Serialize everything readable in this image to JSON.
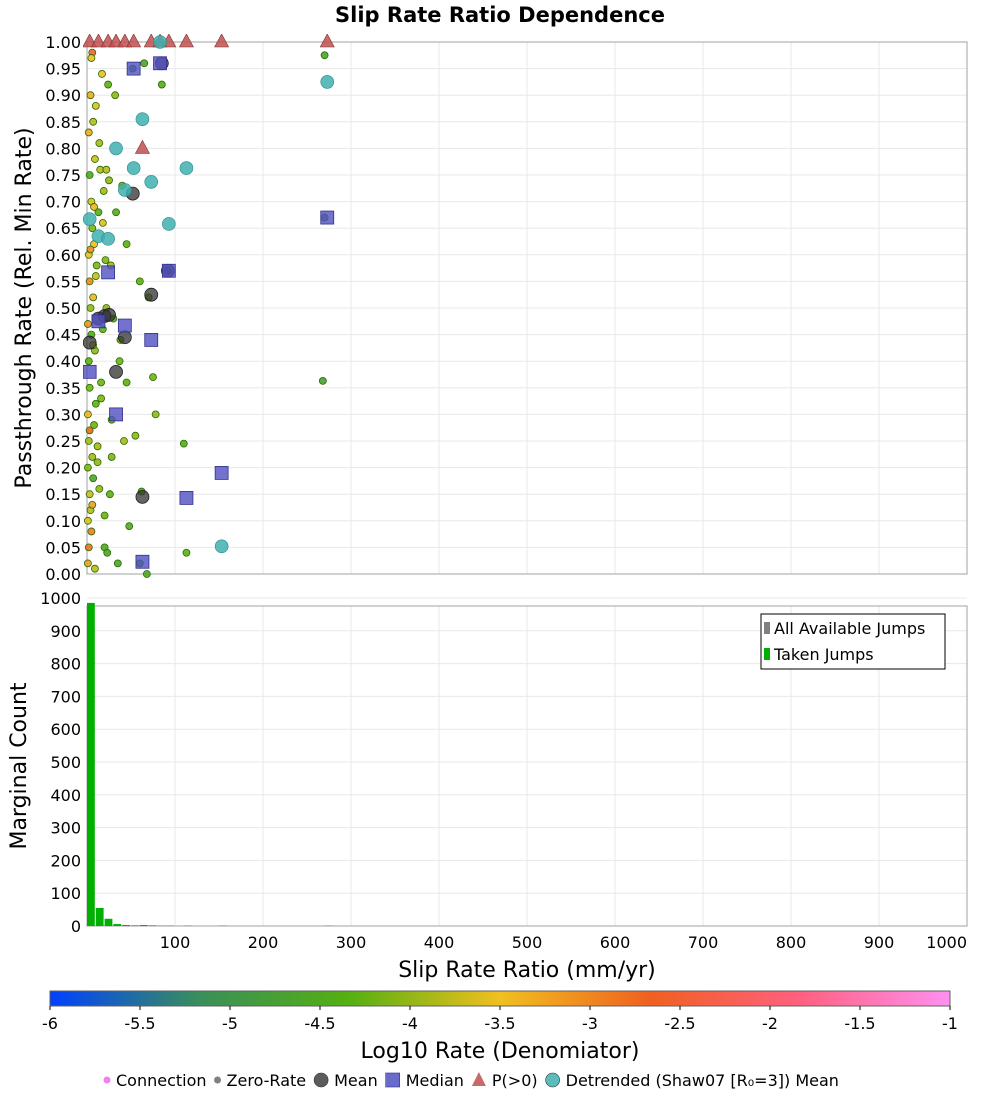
{
  "chart_data": [
    {
      "type": "scatter",
      "title": "Slip Rate Ratio Dependence",
      "ylabel": "Passthrough Rate (Rel. Min Rate)",
      "xlim": [
        0,
        1000
      ],
      "ylim": [
        0,
        1
      ],
      "y_ticks": [
        "0.00",
        "0.05",
        "0.10",
        "0.15",
        "0.20",
        "0.25",
        "0.30",
        "0.35",
        "0.40",
        "0.45",
        "0.50",
        "0.55",
        "0.60",
        "0.65",
        "0.70",
        "0.75",
        "0.80",
        "0.85",
        "0.90",
        "0.95",
        "1.00"
      ],
      "grid": true,
      "series": [
        {
          "name": "Connection",
          "color": "#f080f0",
          "values": []
        },
        {
          "name": "Zero-Rate",
          "color": "#808080",
          "values": []
        },
        {
          "name": "Mean",
          "color": "#303030",
          "x": [
            3,
            13,
            20,
            25,
            33,
            43,
            52,
            63,
            73,
            85,
            92
          ],
          "y": [
            0.435,
            0.48,
            0.485,
            0.487,
            0.38,
            0.445,
            0.715,
            0.145,
            0.525,
            0.96,
            0.57
          ]
        },
        {
          "name": "Median",
          "color": "#5050c0",
          "x": [
            3,
            13,
            24,
            33,
            43,
            53,
            63,
            73,
            83,
            93,
            113,
            153,
            273
          ],
          "y": [
            0.38,
            0.475,
            0.567,
            0.3,
            0.467,
            0.95,
            0.023,
            0.44,
            0.96,
            0.57,
            0.143,
            0.19,
            0.67
          ]
        },
        {
          "name": "P(>0)",
          "color": "#c05050",
          "x": [
            3,
            13,
            24,
            33,
            43,
            53,
            63,
            73,
            83,
            93,
            113,
            153,
            273
          ],
          "y": [
            1.0,
            1.0,
            1.0,
            1.0,
            1.0,
            1.0,
            0.8,
            1.0,
            1.0,
            1.0,
            1.0,
            1.0,
            1.0
          ]
        },
        {
          "name": "Detrended (Shaw07 [R₀=3]) Mean",
          "color": "#40b0b0",
          "x": [
            3,
            13,
            24,
            33,
            43,
            53,
            63,
            73,
            83,
            93,
            113,
            153,
            273
          ],
          "y": [
            0.667,
            0.635,
            0.63,
            0.8,
            0.722,
            0.763,
            0.855,
            0.737,
            1.0,
            0.658,
            0.763,
            0.052,
            0.925
          ]
        }
      ],
      "scatter_points": {
        "x": [
          1,
          1,
          1,
          1,
          2,
          2,
          2,
          2,
          3,
          3,
          3,
          3,
          4,
          4,
          4,
          5,
          5,
          5,
          6,
          6,
          6,
          7,
          7,
          7,
          8,
          8,
          9,
          9,
          10,
          10,
          11,
          12,
          13,
          14,
          15,
          16,
          17,
          18,
          19,
          20,
          21,
          22,
          23,
          25,
          26,
          27,
          28,
          30,
          32,
          35,
          37,
          40,
          42,
          45,
          48,
          52,
          55,
          60,
          62,
          68,
          70,
          75,
          78,
          85,
          92,
          110,
          113,
          268,
          270,
          270,
          1,
          2,
          3,
          4,
          5,
          6,
          7,
          8,
          9,
          10,
          12,
          14,
          16,
          18,
          20,
          22,
          24,
          28,
          33,
          38,
          45,
          60,
          65
        ],
        "y": [
          0.02,
          0.1,
          0.2,
          0.3,
          0.05,
          0.25,
          0.4,
          0.6,
          0.15,
          0.35,
          0.55,
          0.75,
          0.12,
          0.5,
          0.9,
          0.08,
          0.45,
          0.7,
          0.22,
          0.65,
          0.98,
          0.18,
          0.52,
          0.85,
          0.28,
          0.62,
          0.42,
          0.78,
          0.32,
          0.88,
          0.58,
          0.24,
          0.68,
          0.16,
          0.76,
          0.36,
          0.94,
          0.46,
          0.72,
          0.05,
          0.59,
          0.76,
          0.04,
          0.74,
          0.15,
          0.58,
          0.29,
          0.48,
          0.9,
          0.02,
          0.4,
          0.73,
          0.25,
          0.62,
          0.09,
          0.95,
          0.26,
          0.55,
          0.155,
          0.0,
          0.52,
          0.37,
          0.3,
          0.92,
          0.57,
          0.245,
          0.04,
          0.363,
          0.975,
          0.67,
          0.47,
          0.83,
          0.27,
          0.61,
          0.97,
          0.13,
          0.43,
          0.69,
          0.01,
          0.56,
          0.21,
          0.81,
          0.33,
          0.66,
          0.11,
          0.5,
          0.92,
          0.22,
          0.68,
          0.44,
          0.36,
          0.02,
          0.96
        ],
        "c": [
          -3.2,
          -3.6,
          -4.1,
          -3.4,
          -2.8,
          -3.9,
          -4.3,
          -3.5,
          -3.7,
          -4.2,
          -3.0,
          -4.5,
          -3.8,
          -4.0,
          -3.3,
          -2.9,
          -4.4,
          -3.6,
          -3.9,
          -4.1,
          -2.5,
          -4.6,
          -3.4,
          -3.8,
          -4.2,
          -3.5,
          -4.0,
          -3.7,
          -4.3,
          -3.6,
          -4.1,
          -3.9,
          -4.4,
          -4.0,
          -3.8,
          -4.2,
          -3.5,
          -4.3,
          -3.9,
          -4.5,
          -4.1,
          -3.8,
          -4.6,
          -4.0,
          -4.3,
          -3.9,
          -4.2,
          -4.4,
          -4.0,
          -4.6,
          -4.2,
          -4.1,
          -3.9,
          -4.3,
          -4.5,
          -4.7,
          -4.0,
          -4.3,
          -4.4,
          -4.6,
          -4.1,
          -4.2,
          -4.0,
          -4.4,
          -4.5,
          -4.4,
          -4.3,
          -4.8,
          -4.6,
          -4.7,
          -3.1,
          -3.3,
          -2.7,
          -3.0,
          -3.5,
          -3.2,
          -3.6,
          -3.4,
          -3.8,
          -3.7,
          -4.0,
          -3.9,
          -4.1,
          -3.6,
          -4.2,
          -4.0,
          -4.3,
          -4.1,
          -4.4,
          -4.2,
          -4.3,
          -4.5,
          -4.6
        ]
      }
    },
    {
      "type": "bar",
      "ylabel": "Marginal Count",
      "xlabel": "Slip Rate Ratio (mm/yr)",
      "xlim": [
        0,
        1000
      ],
      "ylim": [
        0,
        1000
      ],
      "x_ticks": [
        "100",
        "200",
        "300",
        "400",
        "500",
        "600",
        "700",
        "800",
        "900",
        "1000"
      ],
      "y_ticks": [
        "0",
        "100",
        "200",
        "300",
        "400",
        "500",
        "600",
        "700",
        "800",
        "900",
        "1000"
      ],
      "grid": true,
      "legend_position": "top-right",
      "series": [
        {
          "name": "All Available Jumps",
          "color": "#808080"
        },
        {
          "name": "Taken Jumps",
          "color": "#00b000",
          "x": [
            5,
            15,
            25,
            35,
            45,
            55,
            65,
            75,
            85,
            95,
            115,
            155,
            275
          ],
          "values": [
            985,
            55,
            22,
            6,
            3,
            2,
            3,
            2,
            1,
            1,
            1,
            1,
            1
          ]
        }
      ]
    }
  ],
  "colorbar": {
    "label": "Log10 Rate (Denomiator)",
    "min": -6,
    "max": -1,
    "ticks": [
      "-6",
      "-5.5",
      "-5",
      "-4.5",
      "-4",
      "-3.5",
      "-3",
      "-2.5",
      "-2",
      "-1.5",
      "-1"
    ],
    "stops": [
      "#0040ff",
      "#3a8f5a",
      "#55b010",
      "#f0c020",
      "#f06020",
      "#ff6080",
      "#ff90f0"
    ]
  },
  "legend": [
    {
      "label": "Connection",
      "shape": "dot",
      "color": "#f080f0"
    },
    {
      "label": "Zero-Rate",
      "shape": "dot",
      "color": "#808080"
    },
    {
      "label": "Mean",
      "shape": "circle",
      "color": "#404040"
    },
    {
      "label": "Median",
      "shape": "square",
      "color": "#5050c0"
    },
    {
      "label": "P(>0)",
      "shape": "triangle",
      "color": "#c05050"
    },
    {
      "label": "Detrended (Shaw07 [R₀=3]) Mean",
      "shape": "circle",
      "color": "#40b0b0"
    }
  ]
}
